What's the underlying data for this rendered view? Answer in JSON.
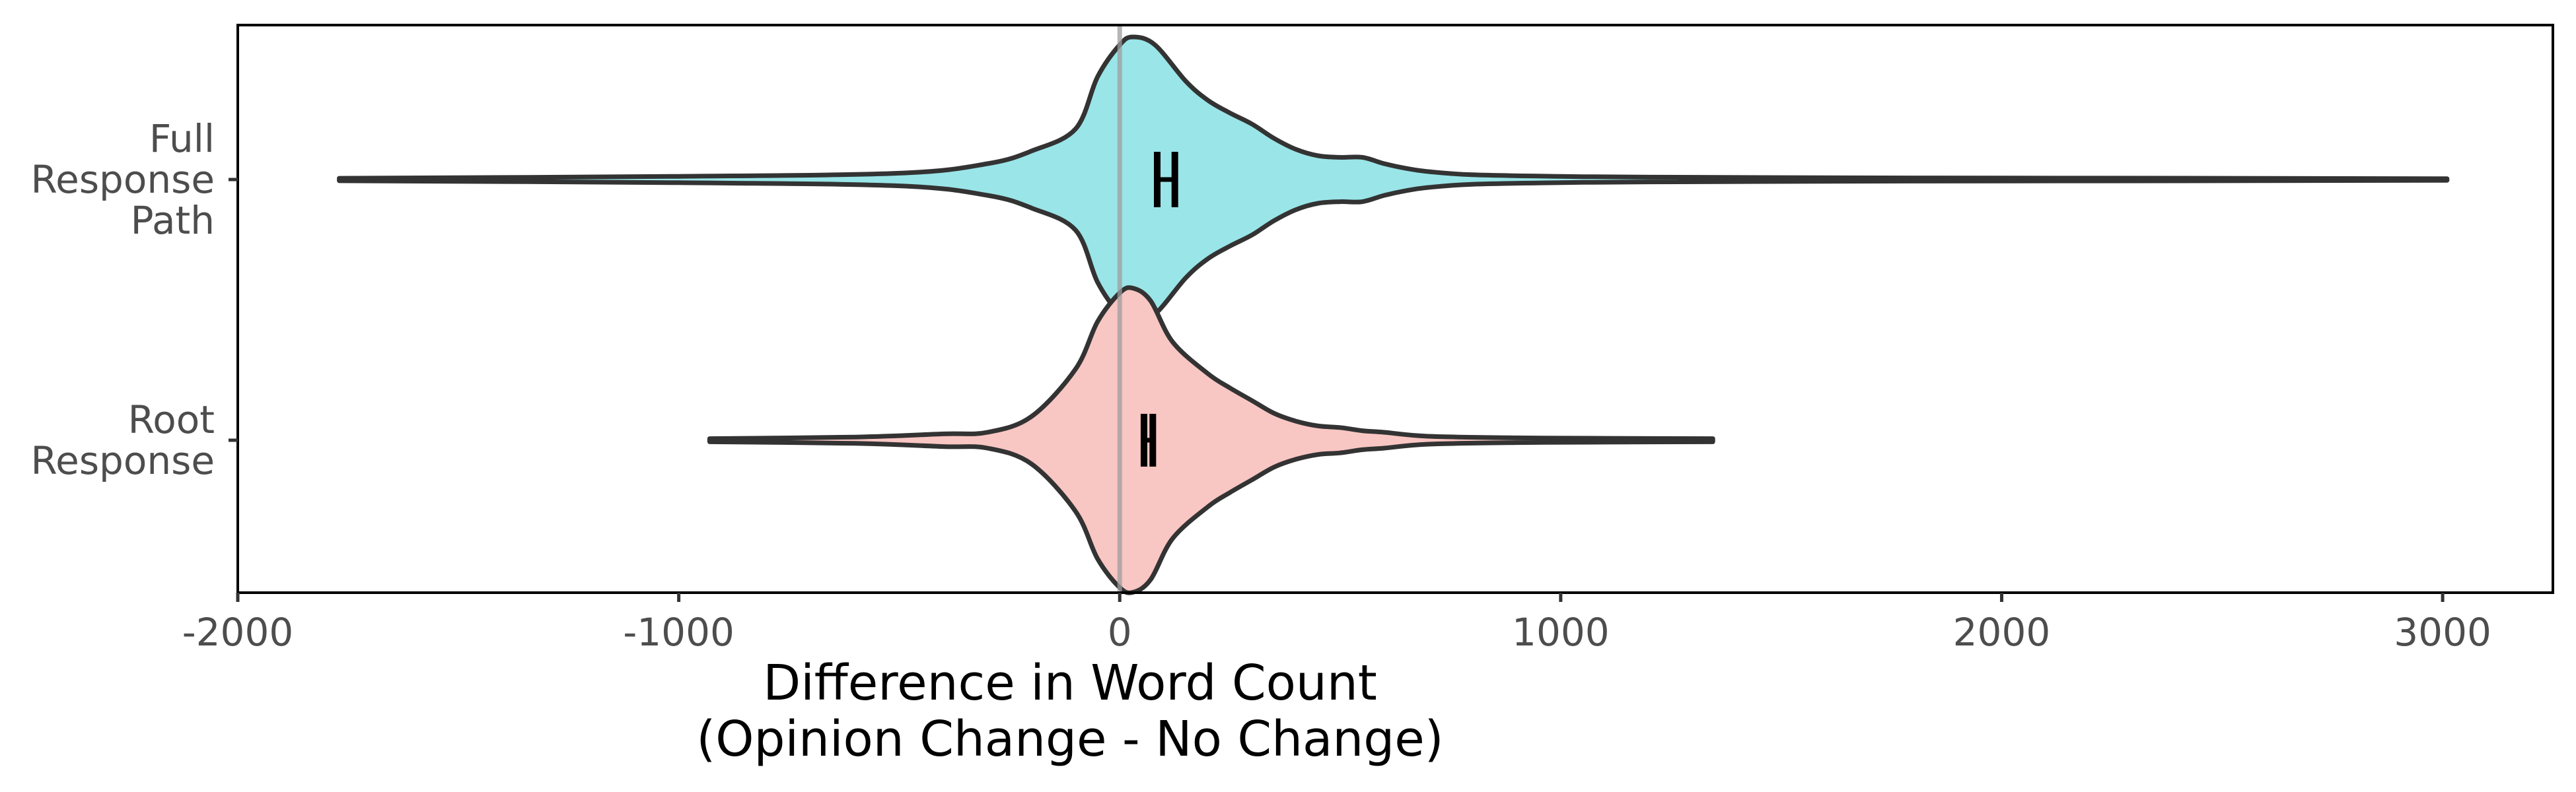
{
  "chart_data": {
    "type": "violin",
    "orientation": "horizontal",
    "xlabel": "Difference in Word Count",
    "xlabel_line2": "(Opinion Change - No Change)",
    "ylabel": "",
    "xlim": [
      -2000,
      3250
    ],
    "x_ticks": [
      -2000,
      -1000,
      0,
      1000,
      2000,
      3000
    ],
    "x_tick_labels": [
      "-2000",
      "-1000",
      "0",
      "1000",
      "2000",
      "3000"
    ],
    "reference_line_x": 0,
    "grid": false,
    "legend": "none",
    "categories": [
      "Full Response Path",
      "Root Response"
    ],
    "category_label_lines": [
      [
        "Full",
        "Response",
        "Path"
      ],
      [
        "Root",
        "Response"
      ]
    ],
    "series": [
      {
        "name": "Full Response Path",
        "color": "#9ae5e8",
        "range": [
          -1770,
          3010
        ],
        "ci": [
          85,
          125
        ],
        "density_profile": [
          [
            -1770,
            0.008
          ],
          [
            -1000,
            0.02
          ],
          [
            -500,
            0.04
          ],
          [
            -300,
            0.1
          ],
          [
            -200,
            0.18
          ],
          [
            -100,
            0.32
          ],
          [
            -50,
            0.65
          ],
          [
            0,
            0.85
          ],
          [
            30,
            0.9
          ],
          [
            80,
            0.85
          ],
          [
            150,
            0.62
          ],
          [
            200,
            0.5
          ],
          [
            250,
            0.42
          ],
          [
            300,
            0.35
          ],
          [
            350,
            0.26
          ],
          [
            400,
            0.19
          ],
          [
            450,
            0.15
          ],
          [
            500,
            0.14
          ],
          [
            550,
            0.14
          ],
          [
            600,
            0.1
          ],
          [
            650,
            0.07
          ],
          [
            700,
            0.05
          ],
          [
            800,
            0.03
          ],
          [
            1000,
            0.02
          ],
          [
            1200,
            0.015
          ],
          [
            1800,
            0.01
          ],
          [
            2500,
            0.008
          ],
          [
            3010,
            0.005
          ]
        ]
      },
      {
        "name": "Root Response",
        "color": "#f8c6c3",
        "range": [
          -930,
          1345
        ],
        "ci": [
          55,
          75
        ],
        "density_profile": [
          [
            -930,
            0.01
          ],
          [
            -600,
            0.02
          ],
          [
            -400,
            0.04
          ],
          [
            -300,
            0.05
          ],
          [
            -200,
            0.15
          ],
          [
            -100,
            0.45
          ],
          [
            -50,
            0.75
          ],
          [
            0,
            0.93
          ],
          [
            30,
            0.96
          ],
          [
            70,
            0.88
          ],
          [
            120,
            0.62
          ],
          [
            200,
            0.42
          ],
          [
            250,
            0.33
          ],
          [
            300,
            0.25
          ],
          [
            350,
            0.17
          ],
          [
            400,
            0.12
          ],
          [
            450,
            0.09
          ],
          [
            500,
            0.08
          ],
          [
            550,
            0.06
          ],
          [
            600,
            0.05
          ],
          [
            700,
            0.025
          ],
          [
            900,
            0.015
          ],
          [
            1100,
            0.012
          ],
          [
            1345,
            0.01
          ]
        ]
      }
    ]
  }
}
